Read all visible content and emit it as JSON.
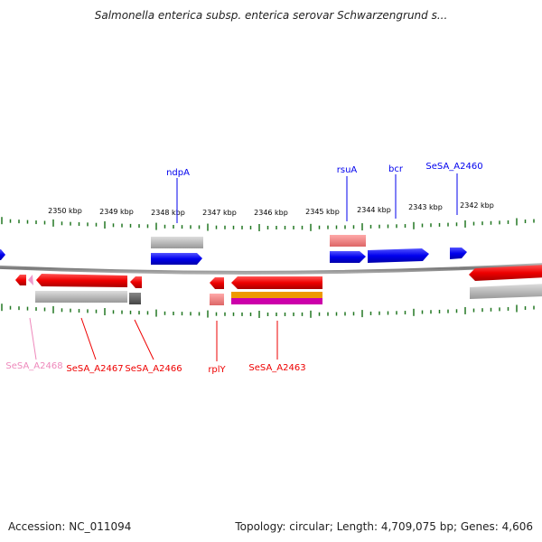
{
  "title": "Salmonella enterica subsp. enterica serovar Schwarzengrund s...",
  "accession": {
    "label": "Accession:",
    "value": "NC_011094"
  },
  "genome_info": {
    "topology_label": "Topology:",
    "topology": "circular",
    "length_label": "Length:",
    "length": "4,709,075 bp",
    "genes_label": "Genes:",
    "genes": "4,606"
  },
  "scale_labels": [
    "2350 kbp",
    "2349 kbp",
    "2348 kbp",
    "2347 kbp",
    "2346 kbp",
    "2345 kbp",
    "2344 kbp",
    "2343 kbp",
    "2342 kbp"
  ],
  "gene_labels": {
    "ndpA": "ndpA",
    "rsuA": "rsuA",
    "bcr": "bcr",
    "SeSA_A2460": "SeSA_A2460",
    "SeSA_A2468": "SeSA_A2468",
    "SeSA_A2467": "SeSA_A2467",
    "SeSA_A2466": "SeSA_A2466",
    "rplY": "rplY",
    "SeSA_A2463": "SeSA_A2463"
  },
  "colors": {
    "forward_gene": "#0000ee",
    "reverse_gene": "#ee0000",
    "pseudo_gene": "#ee88bb",
    "rna": "#ee8888",
    "gray_feature": "#bbbbbb",
    "dark_gray_feature": "#666666",
    "orange_feature": "#ee9900",
    "magenta_feature": "#cc00aa",
    "ticks": "#227722",
    "backbone": "#888888"
  }
}
